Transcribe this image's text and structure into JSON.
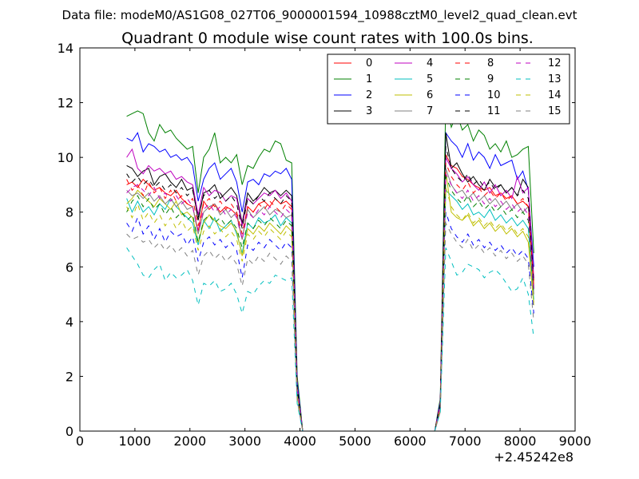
{
  "chart_data": {
    "type": "line",
    "suptitle": "Data file: modeM0/AS1G08_027T06_9000001594_10988cztM0_level2_quad_clean.evt",
    "title": "Quadrant 0 module wise count rates with 100.0s bins.",
    "xlabel": "",
    "ylabel": "",
    "x_offset_label": "+2.45242e8",
    "xlim": [
      0,
      9000
    ],
    "ylim": [
      0,
      14
    ],
    "xticks": [
      0,
      1000,
      2000,
      3000,
      4000,
      5000,
      6000,
      7000,
      8000,
      9000
    ],
    "yticks": [
      0,
      2,
      4,
      6,
      8,
      10,
      12,
      14
    ],
    "grid": false,
    "legend_position": "top-right",
    "legend_columns": 4,
    "x": [
      850,
      950,
      1050,
      1150,
      1250,
      1350,
      1450,
      1550,
      1650,
      1750,
      1850,
      1950,
      2050,
      2150,
      2250,
      2350,
      2450,
      2550,
      2650,
      2750,
      2850,
      2950,
      3050,
      3150,
      3250,
      3350,
      3450,
      3550,
      3650,
      3750,
      3850,
      3950,
      4050,
      4150,
      6450,
      6550,
      6650,
      6750,
      6850,
      6950,
      7050,
      7150,
      7250,
      7350,
      7450,
      7550,
      7650,
      7750,
      7850,
      7950,
      8050,
      8150,
      8250
    ],
    "series": [
      {
        "name": "0",
        "color": "#ff0000",
        "dashed": false,
        "values": [
          9.0,
          9.1,
          8.9,
          9.2,
          9.0,
          8.8,
          8.9,
          8.7,
          8.6,
          8.8,
          8.5,
          8.3,
          8.2,
          7.3,
          8.4,
          8.1,
          8.3,
          8.0,
          8.2,
          8.1,
          7.9,
          7.0,
          8.2,
          8.0,
          8.3,
          8.4,
          8.2,
          8.5,
          8.3,
          8.4,
          8.2,
          1.5,
          0.0,
          0.0,
          0.0,
          1.0,
          10.1,
          9.7,
          9.6,
          9.3,
          9.2,
          9.0,
          8.9,
          8.8,
          8.9,
          8.6,
          8.7,
          8.5,
          8.6,
          8.3,
          8.4,
          8.2,
          5.5
        ]
      },
      {
        "name": "1",
        "color": "#008000",
        "dashed": false,
        "values": [
          11.5,
          11.6,
          11.7,
          11.6,
          10.9,
          10.6,
          11.2,
          10.9,
          11.0,
          10.7,
          10.5,
          10.3,
          10.4,
          8.7,
          10.0,
          10.3,
          10.9,
          9.8,
          10.0,
          9.8,
          10.1,
          9.0,
          9.7,
          9.6,
          10.0,
          10.3,
          10.2,
          10.6,
          10.5,
          9.9,
          9.8,
          2.0,
          0.0,
          0.0,
          0.0,
          1.2,
          12.1,
          11.1,
          11.6,
          11.0,
          11.2,
          10.6,
          11.0,
          10.8,
          10.3,
          10.5,
          10.2,
          10.6,
          10.0,
          10.1,
          10.3,
          10.4,
          6.5
        ]
      },
      {
        "name": "2",
        "color": "#0000ff",
        "dashed": false,
        "values": [
          10.7,
          10.6,
          10.9,
          10.2,
          10.5,
          10.4,
          10.2,
          10.3,
          10.0,
          10.1,
          9.9,
          10.0,
          9.7,
          8.4,
          9.2,
          9.6,
          9.8,
          9.2,
          9.4,
          9.6,
          9.1,
          8.0,
          9.1,
          9.2,
          9.0,
          9.4,
          9.3,
          9.5,
          9.4,
          9.6,
          9.2,
          1.8,
          0.0,
          0.0,
          0.0,
          1.1,
          10.9,
          10.6,
          10.4,
          10.0,
          10.5,
          9.9,
          10.2,
          10.0,
          9.6,
          10.1,
          9.7,
          9.8,
          9.9,
          9.2,
          9.5,
          8.8,
          6.0
        ]
      },
      {
        "name": "3",
        "color": "#000000",
        "dashed": false,
        "values": [
          9.7,
          9.6,
          9.3,
          9.5,
          9.6,
          9.0,
          9.3,
          9.4,
          9.1,
          8.9,
          9.2,
          8.8,
          8.9,
          7.7,
          8.7,
          8.8,
          9.0,
          8.5,
          8.7,
          8.9,
          8.6,
          7.6,
          8.7,
          8.4,
          8.6,
          8.9,
          8.7,
          8.8,
          8.6,
          8.8,
          8.6,
          1.6,
          0.0,
          0.0,
          0.0,
          1.0,
          10.9,
          9.6,
          9.8,
          9.4,
          9.1,
          9.3,
          9.0,
          8.8,
          9.2,
          8.9,
          9.0,
          8.7,
          8.9,
          8.6,
          9.2,
          8.9,
          5.2
        ]
      },
      {
        "name": "4",
        "color": "#bf00bf",
        "dashed": false,
        "values": [
          10.0,
          10.3,
          9.6,
          9.4,
          9.7,
          9.5,
          9.6,
          9.4,
          9.5,
          9.2,
          9.3,
          9.1,
          9.0,
          7.9,
          8.9,
          8.6,
          8.8,
          8.7,
          8.4,
          8.6,
          8.5,
          7.5,
          8.5,
          8.3,
          8.5,
          8.7,
          8.6,
          8.8,
          8.5,
          8.7,
          8.4,
          1.6,
          0.0,
          0.0,
          0.0,
          1.0,
          10.0,
          9.6,
          9.4,
          9.1,
          9.3,
          9.0,
          8.8,
          9.1,
          8.7,
          9.0,
          8.6,
          8.8,
          8.5,
          9.3,
          8.7,
          8.9,
          5.6
        ]
      },
      {
        "name": "5",
        "color": "#00bfbf",
        "dashed": false,
        "values": [
          8.5,
          8.0,
          8.4,
          8.0,
          8.2,
          7.9,
          8.3,
          8.1,
          8.5,
          8.2,
          8.0,
          7.8,
          7.6,
          6.8,
          7.7,
          7.4,
          7.8,
          7.3,
          7.5,
          7.7,
          7.2,
          6.5,
          7.6,
          7.4,
          7.8,
          7.6,
          7.7,
          7.9,
          7.5,
          7.8,
          7.6,
          1.4,
          0.0,
          0.0,
          0.0,
          0.9,
          8.8,
          8.6,
          8.4,
          8.1,
          8.3,
          7.9,
          8.0,
          7.8,
          8.1,
          7.7,
          7.9,
          7.6,
          7.8,
          7.5,
          7.7,
          7.4,
          4.8
        ]
      },
      {
        "name": "6",
        "color": "#bfbf00",
        "dashed": false,
        "values": [
          8.3,
          8.5,
          8.8,
          8.6,
          8.4,
          8.2,
          8.5,
          8.3,
          8.1,
          8.4,
          7.9,
          8.0,
          7.8,
          6.9,
          7.6,
          7.9,
          7.7,
          7.5,
          7.4,
          7.6,
          7.3,
          6.4,
          7.4,
          7.2,
          7.5,
          7.3,
          7.6,
          7.4,
          7.2,
          7.5,
          7.3,
          1.3,
          0.0,
          0.0,
          0.0,
          0.8,
          9.5,
          8.0,
          7.8,
          7.7,
          7.9,
          7.5,
          7.7,
          7.4,
          7.6,
          7.3,
          7.5,
          7.2,
          7.4,
          7.1,
          7.3,
          6.9,
          4.6
        ]
      },
      {
        "name": "7",
        "color": "#808080",
        "dashed": false,
        "values": [
          8.8,
          8.6,
          8.7,
          8.5,
          8.7,
          8.4,
          8.6,
          8.3,
          8.5,
          8.2,
          8.4,
          8.1,
          8.2,
          7.2,
          8.0,
          8.2,
          8.3,
          7.9,
          8.1,
          7.8,
          8.0,
          7.0,
          8.1,
          7.8,
          8.0,
          8.2,
          7.9,
          8.1,
          8.0,
          7.8,
          7.9,
          1.5,
          0.0,
          0.0,
          0.0,
          0.9,
          9.6,
          9.0,
          8.7,
          8.8,
          8.5,
          8.7,
          8.4,
          8.6,
          8.3,
          8.5,
          8.2,
          8.4,
          8.1,
          8.3,
          8.0,
          8.2,
          5.0
        ]
      },
      {
        "name": "8",
        "color": "#ff0000",
        "dashed": true,
        "values": [
          9.2,
          8.8,
          9.0,
          8.6,
          9.1,
          8.7,
          8.9,
          8.5,
          8.8,
          8.4,
          8.6,
          8.3,
          8.5,
          7.5,
          8.3,
          8.5,
          8.2,
          8.4,
          8.1,
          8.3,
          8.0,
          7.2,
          8.2,
          8.0,
          8.3,
          8.1,
          8.4,
          8.2,
          8.0,
          8.3,
          8.1,
          1.5,
          0.0,
          0.0,
          0.0,
          1.0,
          9.8,
          9.3,
          9.0,
          8.8,
          9.1,
          8.7,
          8.9,
          8.6,
          8.8,
          8.5,
          8.7,
          8.4,
          8.6,
          8.3,
          8.5,
          8.2,
          5.3
        ]
      },
      {
        "name": "9",
        "color": "#008000",
        "dashed": true,
        "values": [
          8.0,
          8.4,
          8.6,
          8.2,
          8.5,
          8.1,
          8.3,
          7.9,
          8.2,
          7.8,
          8.0,
          7.7,
          7.9,
          6.9,
          7.7,
          7.9,
          7.6,
          7.8,
          7.5,
          7.7,
          7.4,
          6.7,
          7.6,
          7.4,
          7.7,
          7.5,
          7.8,
          7.6,
          7.4,
          7.7,
          7.5,
          1.4,
          0.0,
          0.0,
          0.0,
          0.9,
          9.3,
          8.8,
          8.5,
          8.3,
          8.6,
          8.2,
          8.4,
          8.1,
          8.3,
          8.0,
          8.2,
          7.9,
          8.1,
          7.8,
          8.0,
          7.7,
          5.0
        ]
      },
      {
        "name": "10",
        "color": "#0000ff",
        "dashed": true,
        "values": [
          7.6,
          7.3,
          7.8,
          7.2,
          7.5,
          7.0,
          7.4,
          6.9,
          7.3,
          7.1,
          7.2,
          6.8,
          7.1,
          6.2,
          6.9,
          7.1,
          6.8,
          7.0,
          6.7,
          6.9,
          6.6,
          5.6,
          6.8,
          6.6,
          6.9,
          6.7,
          7.0,
          6.8,
          6.6,
          6.9,
          6.7,
          1.2,
          0.0,
          0.0,
          0.0,
          0.8,
          8.0,
          7.4,
          7.1,
          6.9,
          7.2,
          6.8,
          7.0,
          6.7,
          6.9,
          6.6,
          6.8,
          6.5,
          6.7,
          6.4,
          6.6,
          6.3,
          4.3
        ]
      },
      {
        "name": "11",
        "color": "#000000",
        "dashed": true,
        "values": [
          9.4,
          9.1,
          9.3,
          9.0,
          9.2,
          8.9,
          9.1,
          8.8,
          9.0,
          8.7,
          8.9,
          8.6,
          8.8,
          7.8,
          8.6,
          8.8,
          8.5,
          8.7,
          8.4,
          8.6,
          8.3,
          7.4,
          8.5,
          8.3,
          8.6,
          8.4,
          8.7,
          8.5,
          8.3,
          8.6,
          8.4,
          1.6,
          0.0,
          0.0,
          0.0,
          1.0,
          10.4,
          9.6,
          9.3,
          9.1,
          9.4,
          9.0,
          9.2,
          8.9,
          9.1,
          8.8,
          9.0,
          8.7,
          8.9,
          8.6,
          8.8,
          8.5,
          5.4
        ]
      },
      {
        "name": "12",
        "color": "#bf00bf",
        "dashed": true,
        "values": [
          8.7,
          8.9,
          9.0,
          8.8,
          8.6,
          8.9,
          8.5,
          8.7,
          8.4,
          8.6,
          8.3,
          8.5,
          8.2,
          7.3,
          8.1,
          8.3,
          8.0,
          8.2,
          7.9,
          8.1,
          7.8,
          7.0,
          8.0,
          7.8,
          8.1,
          7.9,
          8.2,
          8.0,
          7.8,
          8.1,
          7.9,
          1.5,
          0.0,
          0.0,
          0.0,
          0.9,
          9.4,
          9.0,
          8.7,
          8.5,
          8.8,
          8.4,
          8.6,
          8.3,
          8.5,
          8.2,
          8.4,
          8.1,
          8.3,
          8.0,
          8.2,
          7.9,
          5.1
        ]
      },
      {
        "name": "13",
        "color": "#00bfbf",
        "dashed": true,
        "values": [
          6.7,
          6.4,
          6.1,
          5.7,
          5.6,
          5.9,
          6.1,
          5.5,
          5.8,
          5.6,
          5.7,
          5.9,
          5.5,
          4.6,
          5.4,
          5.3,
          5.5,
          5.1,
          5.2,
          5.4,
          5.0,
          4.3,
          5.1,
          5.0,
          5.3,
          5.5,
          5.4,
          5.7,
          5.6,
          5.5,
          5.6,
          1.0,
          0.0,
          0.0,
          0.0,
          0.7,
          6.7,
          6.2,
          5.7,
          5.8,
          6.1,
          6.0,
          5.9,
          5.6,
          5.8,
          5.9,
          5.7,
          5.4,
          5.1,
          5.2,
          5.6,
          5.0,
          3.4
        ]
      },
      {
        "name": "14",
        "color": "#bfbf00",
        "dashed": true,
        "values": [
          8.2,
          7.8,
          8.3,
          7.7,
          8.0,
          7.6,
          7.9,
          7.5,
          7.8,
          7.4,
          7.7,
          7.3,
          7.5,
          6.6,
          7.3,
          7.5,
          7.2,
          7.4,
          7.1,
          7.3,
          7.0,
          6.2,
          7.2,
          7.0,
          7.3,
          7.1,
          7.4,
          7.2,
          7.0,
          7.3,
          7.1,
          1.3,
          0.0,
          0.0,
          0.0,
          0.8,
          8.9,
          8.2,
          7.9,
          7.7,
          8.0,
          7.6,
          7.8,
          7.5,
          7.7,
          7.4,
          7.6,
          7.3,
          7.5,
          7.2,
          7.4,
          7.1,
          4.7
        ]
      },
      {
        "name": "15",
        "color": "#808080",
        "dashed": true,
        "values": [
          7.2,
          7.0,
          7.1,
          6.9,
          7.0,
          6.7,
          6.9,
          6.6,
          6.8,
          6.5,
          6.7,
          6.4,
          6.6,
          5.7,
          6.4,
          6.6,
          6.3,
          6.5,
          6.2,
          6.4,
          6.1,
          5.3,
          6.3,
          6.1,
          6.4,
          6.2,
          6.5,
          6.3,
          6.1,
          6.4,
          6.2,
          1.1,
          0.0,
          0.0,
          0.0,
          0.7,
          7.6,
          7.2,
          6.9,
          6.7,
          7.0,
          6.6,
          6.8,
          6.5,
          6.7,
          6.4,
          6.6,
          6.3,
          6.5,
          6.2,
          6.4,
          6.1,
          4.0
        ]
      }
    ]
  }
}
